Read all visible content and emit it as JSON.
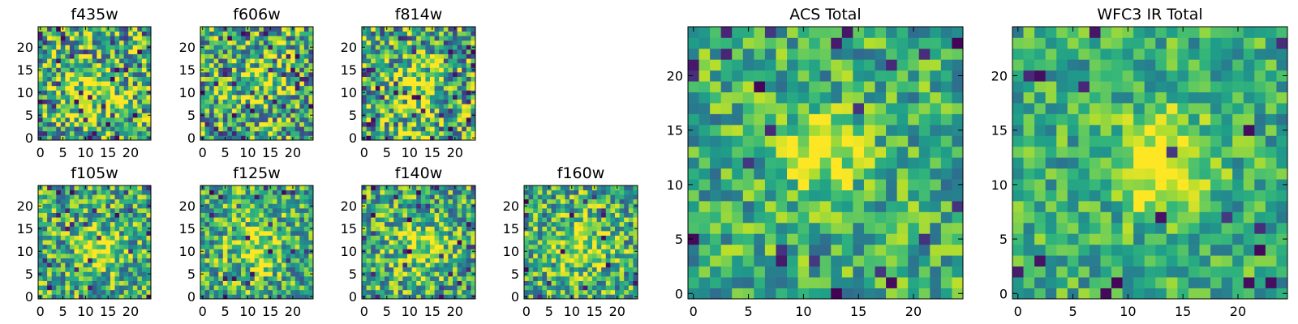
{
  "colormap": "viridis",
  "colors": {
    "frame": "#000000",
    "background": "#ffffff"
  },
  "chart_data": [
    {
      "type": "heatmap",
      "title": "f435w",
      "size": 25,
      "xticks": [
        0,
        5,
        10,
        15,
        20
      ],
      "yticks": [
        0,
        5,
        10,
        15,
        20
      ],
      "xlim": [
        -0.5,
        24.5
      ],
      "ylim": [
        -0.5,
        24.5
      ],
      "seed": 11,
      "noise": 0.55,
      "blob": {
        "cx": 12,
        "cy": 9,
        "sigma": 4,
        "amp": 0.3
      },
      "dark_fraction": 0.05
    },
    {
      "type": "heatmap",
      "title": "f606w",
      "size": 25,
      "xticks": [
        0,
        5,
        10,
        15,
        20
      ],
      "yticks": [
        0,
        5,
        10,
        15,
        20
      ],
      "xlim": [
        -0.5,
        24.5
      ],
      "ylim": [
        -0.5,
        24.5
      ],
      "seed": 23,
      "noise": 0.55,
      "blob": {
        "cx": 12,
        "cy": 11,
        "sigma": 4,
        "amp": 0.2
      },
      "dark_fraction": 0.05
    },
    {
      "type": "heatmap",
      "title": "f814w",
      "size": 25,
      "xticks": [
        0,
        5,
        10,
        15,
        20
      ],
      "yticks": [
        0,
        5,
        10,
        15,
        20
      ],
      "xlim": [
        -0.5,
        24.5
      ],
      "ylim": [
        -0.5,
        24.5
      ],
      "seed": 37,
      "noise": 0.55,
      "blob": {
        "cx": 12,
        "cy": 11,
        "sigma": 4,
        "amp": 0.25
      },
      "dark_fraction": 0.06
    },
    {
      "type": "heatmap",
      "title": "f105w",
      "size": 25,
      "xticks": [
        0,
        5,
        10,
        15,
        20
      ],
      "yticks": [
        0,
        5,
        10,
        15,
        20
      ],
      "xlim": [
        -0.5,
        24.5
      ],
      "ylim": [
        -0.5,
        24.5
      ],
      "seed": 41,
      "noise": 0.45,
      "blob": {
        "cx": 13,
        "cy": 10,
        "sigma": 3,
        "amp": 0.4
      },
      "dark_fraction": 0.05
    },
    {
      "type": "heatmap",
      "title": "f125w",
      "size": 25,
      "xticks": [
        0,
        5,
        10,
        15,
        20
      ],
      "yticks": [
        0,
        5,
        10,
        15,
        20
      ],
      "xlim": [
        -0.5,
        24.5
      ],
      "ylim": [
        -0.5,
        24.5
      ],
      "seed": 53,
      "noise": 0.45,
      "blob": {
        "cx": 12,
        "cy": 11,
        "sigma": 4,
        "amp": 0.3
      },
      "dark_fraction": 0.04
    },
    {
      "type": "heatmap",
      "title": "f140w",
      "size": 25,
      "xticks": [
        0,
        5,
        10,
        15,
        20
      ],
      "yticks": [
        0,
        5,
        10,
        15,
        20
      ],
      "xlim": [
        -0.5,
        24.5
      ],
      "ylim": [
        -0.5,
        24.5
      ],
      "seed": 67,
      "noise": 0.45,
      "blob": {
        "cx": 12,
        "cy": 11,
        "sigma": 4,
        "amp": 0.3
      },
      "dark_fraction": 0.04
    },
    {
      "type": "heatmap",
      "title": "f160w",
      "size": 25,
      "xticks": [
        0,
        5,
        10,
        15,
        20
      ],
      "yticks": [
        0,
        5,
        10,
        15,
        20
      ],
      "xlim": [
        -0.5,
        24.5
      ],
      "ylim": [
        -0.5,
        24.5
      ],
      "seed": 79,
      "noise": 0.45,
      "blob": {
        "cx": 12,
        "cy": 11,
        "sigma": 4,
        "amp": 0.3
      },
      "dark_fraction": 0.03
    },
    {
      "type": "heatmap",
      "title": "ACS Total",
      "size": 25,
      "xticks": [
        0,
        5,
        10,
        15,
        20
      ],
      "yticks": [
        0,
        5,
        10,
        15,
        20
      ],
      "xlim": [
        -0.5,
        24.5
      ],
      "ylim": [
        -0.5,
        24.5
      ],
      "seed": 97,
      "noise": 0.35,
      "blob": {
        "cx": 12,
        "cy": 13,
        "sigma": 2.5,
        "amp": 0.45
      },
      "dark_fraction": 0.04
    },
    {
      "type": "heatmap",
      "title": "WFC3 IR Total",
      "size": 25,
      "xticks": [
        0,
        5,
        10,
        15,
        20
      ],
      "yticks": [
        0,
        5,
        10,
        15,
        20
      ],
      "xlim": [
        -0.5,
        24.5
      ],
      "ylim": [
        -0.5,
        24.5
      ],
      "seed": 113,
      "noise": 0.3,
      "blob": {
        "cx": 13,
        "cy": 12,
        "sigma": 3,
        "amp": 0.5
      },
      "dark_fraction": 0.03
    }
  ]
}
